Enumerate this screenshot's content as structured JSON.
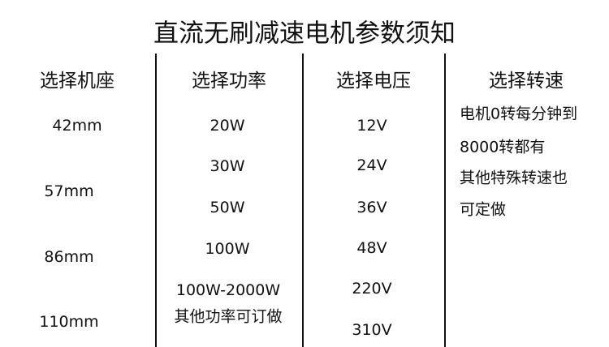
{
  "title": "直流无刷减速电机参数须知",
  "columns": [
    {
      "header": "选择机座",
      "values": [
        "42mm",
        "57mm",
        "86mm",
        "110mm"
      ]
    },
    {
      "header": "选择功率",
      "values": [
        "20W",
        "30W",
        "50W",
        "100W",
        "100W-2000W",
        "其他功率可订做"
      ]
    },
    {
      "header": "选择电压",
      "values": [
        "12V",
        "24V",
        "36V",
        "48V",
        "220V",
        "310V"
      ]
    },
    {
      "header": "选择转速",
      "values": [
        "电机0转每分钟到",
        "8000转都有",
        "其他特殊转速也",
        "可定做"
      ]
    }
  ]
}
